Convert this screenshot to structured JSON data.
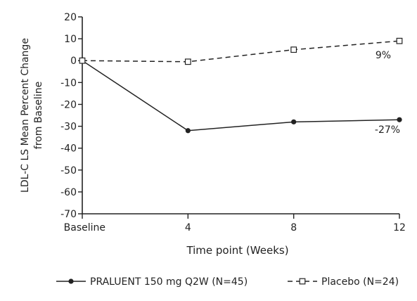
{
  "chart_data": {
    "type": "line",
    "x": [
      "Baseline",
      "4",
      "8",
      "12"
    ],
    "xlabel": "Time point (Weeks)",
    "ylabel_lines": [
      "LDL-C LS Mean Percent Change",
      "from Baseline"
    ],
    "ylim": [
      -70,
      20
    ],
    "yticks": [
      "20",
      "10",
      "0",
      "-10",
      "-20",
      "-30",
      "-40",
      "-50",
      "-60",
      "-70"
    ],
    "grid": false,
    "legend_position": "bottom",
    "series": [
      {
        "name": "PRALUENT 150 mg Q2W (N=45)",
        "values": [
          0,
          -32,
          -28,
          -27
        ],
        "line_style": "solid",
        "marker": "filled-circle",
        "color": "#222222",
        "end_label": "-27%"
      },
      {
        "name": "Placebo (N=24)",
        "values": [
          0,
          -0.5,
          5,
          9
        ],
        "line_style": "dashed",
        "marker": "open-square",
        "color": "#222222",
        "end_label": "9%"
      }
    ]
  }
}
